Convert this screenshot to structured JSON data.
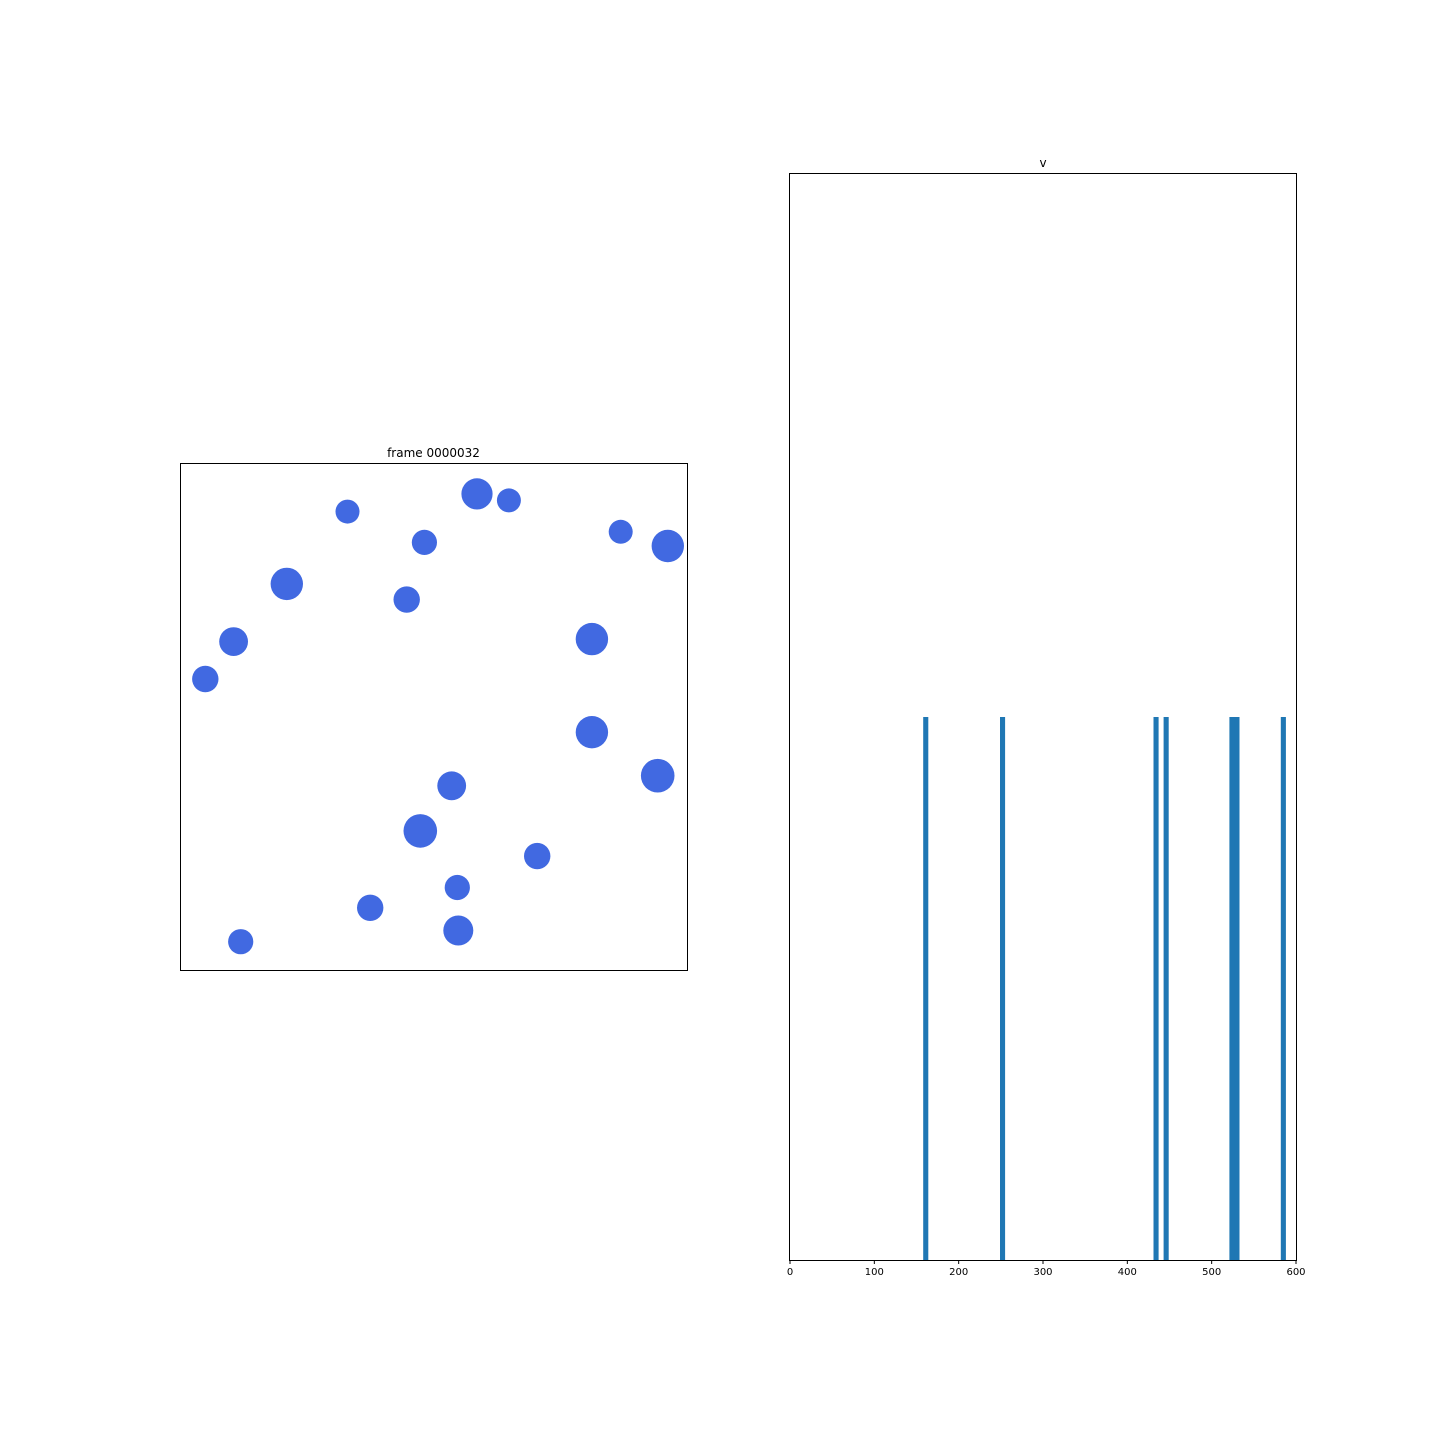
{
  "chart_data": [
    {
      "type": "scatter",
      "title": "frame 0000032",
      "xlabel": "",
      "ylabel": "",
      "xlim": [
        0,
        1
      ],
      "ylim": [
        0,
        1
      ],
      "axes_ticks": false,
      "marker_color": "#4169e1",
      "points": [
        {
          "x": 0.329,
          "y": 0.906,
          "r": 1.0
        },
        {
          "x": 0.585,
          "y": 0.941,
          "r": 1.3
        },
        {
          "x": 0.648,
          "y": 0.928,
          "r": 1.0
        },
        {
          "x": 0.481,
          "y": 0.845,
          "r": 1.05
        },
        {
          "x": 0.869,
          "y": 0.866,
          "r": 1.0
        },
        {
          "x": 0.962,
          "y": 0.838,
          "r": 1.35
        },
        {
          "x": 0.209,
          "y": 0.763,
          "r": 1.35
        },
        {
          "x": 0.446,
          "y": 0.732,
          "r": 1.1
        },
        {
          "x": 0.104,
          "y": 0.649,
          "r": 1.2
        },
        {
          "x": 0.812,
          "y": 0.654,
          "r": 1.35
        },
        {
          "x": 0.048,
          "y": 0.575,
          "r": 1.1
        },
        {
          "x": 0.812,
          "y": 0.47,
          "r": 1.35
        },
        {
          "x": 0.942,
          "y": 0.384,
          "r": 1.4
        },
        {
          "x": 0.535,
          "y": 0.364,
          "r": 1.2
        },
        {
          "x": 0.473,
          "y": 0.275,
          "r": 1.4
        },
        {
          "x": 0.704,
          "y": 0.225,
          "r": 1.1
        },
        {
          "x": 0.546,
          "y": 0.163,
          "r": 1.05
        },
        {
          "x": 0.374,
          "y": 0.123,
          "r": 1.1
        },
        {
          "x": 0.548,
          "y": 0.078,
          "r": 1.25
        },
        {
          "x": 0.118,
          "y": 0.056,
          "r": 1.05
        }
      ]
    },
    {
      "type": "bar",
      "title": "v",
      "xlabel": "",
      "ylabel": "",
      "xlim": [
        0,
        600
      ],
      "ylim": [
        0,
        2
      ],
      "xticks": [
        0,
        100,
        200,
        300,
        400,
        500,
        600
      ],
      "xtick_labels": [
        "0",
        "100",
        "200",
        "300",
        "400",
        "500",
        "600"
      ],
      "bar_color": "#1f77b4",
      "bins": [
        {
          "x0": 158,
          "x1": 164,
          "value": 1
        },
        {
          "x0": 249,
          "x1": 255,
          "value": 1
        },
        {
          "x0": 431,
          "x1": 437,
          "value": 1
        },
        {
          "x0": 443,
          "x1": 449,
          "value": 1
        },
        {
          "x0": 521,
          "x1": 527,
          "value": 1
        },
        {
          "x0": 527,
          "x1": 533,
          "value": 1
        },
        {
          "x0": 582,
          "x1": 588,
          "value": 1
        }
      ]
    }
  ]
}
